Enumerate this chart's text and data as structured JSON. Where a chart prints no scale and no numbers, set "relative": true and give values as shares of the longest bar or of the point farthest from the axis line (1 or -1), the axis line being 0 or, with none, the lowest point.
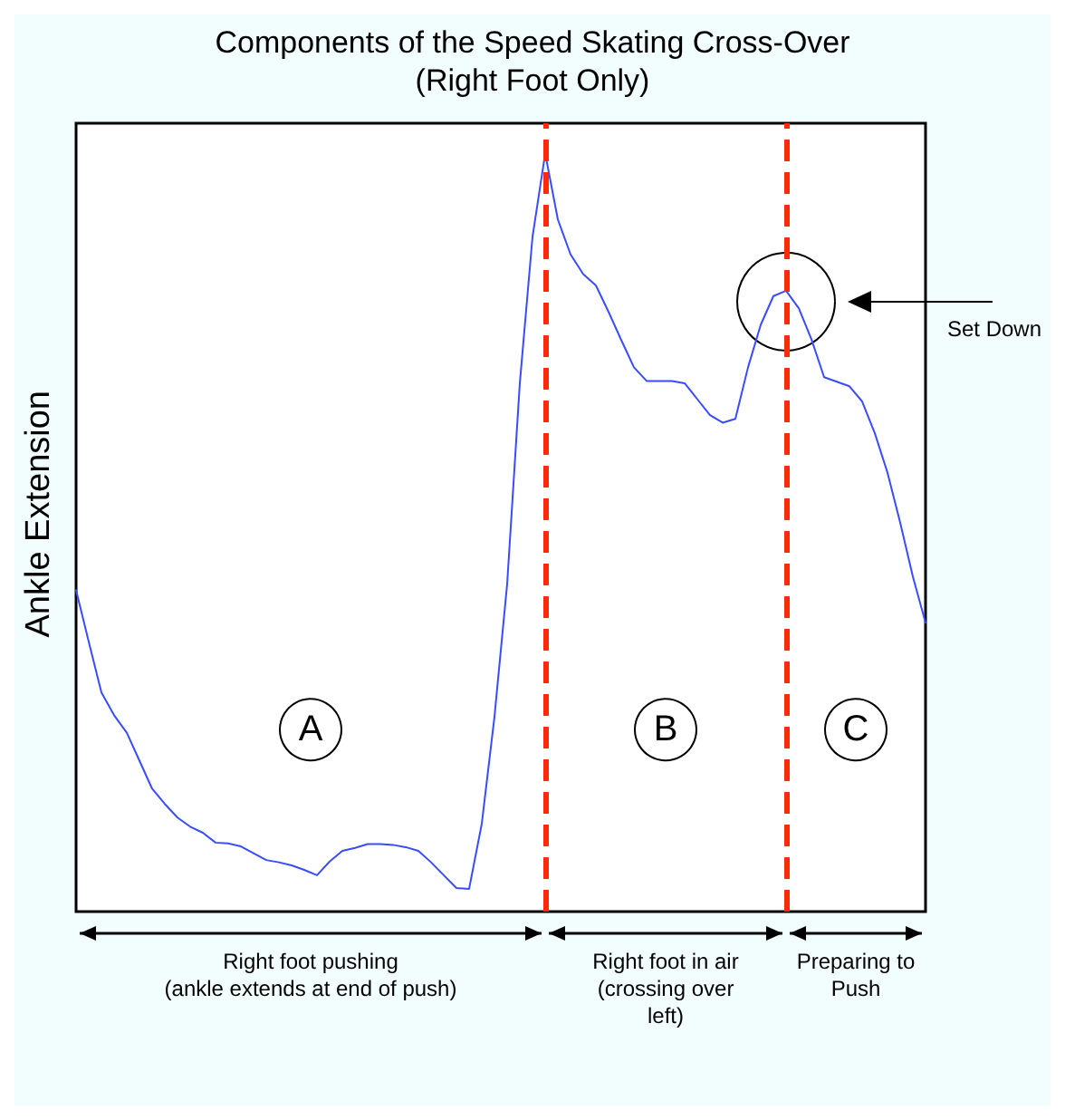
{
  "chart_data": {
    "type": "line",
    "title": "Components of the Speed Skating Cross-Over",
    "subtitle": "(Right Foot Only)",
    "ylabel": "Ankle Extension",
    "relative": true,
    "grid": false,
    "line_style": "solid",
    "categories": [
      null,
      null,
      null,
      null,
      null,
      null,
      null,
      null,
      null,
      null,
      null,
      null,
      null,
      null,
      null,
      null,
      null,
      null,
      null,
      null,
      null,
      null,
      null,
      null,
      null,
      null,
      null,
      null,
      null,
      null,
      null,
      null,
      null,
      null,
      null,
      null,
      null,
      null,
      null,
      null,
      null,
      null,
      null,
      null,
      null,
      null,
      null,
      null,
      null,
      null,
      null,
      null,
      null,
      null,
      null,
      null,
      null,
      null,
      null,
      null,
      null,
      null,
      null,
      null,
      null,
      null,
      null,
      null
    ],
    "series": [
      {
        "color": "#3a4cff",
        "values": [
          0.424,
          0.356,
          0.289,
          0.259,
          0.236,
          0.199,
          0.162,
          0.142,
          0.124,
          0.112,
          0.104,
          0.091,
          0.09,
          0.086,
          0.077,
          0.068,
          0.065,
          0.061,
          0.055,
          0.048,
          0.066,
          0.08,
          0.084,
          0.089,
          0.089,
          0.088,
          0.085,
          0.08,
          0.065,
          0.048,
          0.031,
          0.03,
          0.116,
          0.257,
          0.432,
          0.697,
          0.89,
          1,
          0.913,
          0.867,
          0.841,
          0.826,
          0.791,
          0.754,
          0.718,
          0.7,
          0.7,
          0.7,
          0.697,
          0.676,
          0.655,
          0.645,
          0.65,
          0.718,
          0.774,
          0.812,
          0.819,
          0.796,
          0.755,
          0.705,
          0.699,
          0.693,
          0.673,
          0.631,
          0.579,
          0.513,
          0.442,
          0.381
        ]
      }
    ],
    "annotations": [
      "A",
      "B",
      "C",
      "Right foot pushing\n(ankle extends at end of push)",
      "Right foot in air\n(crossing over\nleft)",
      "Preparing to\nPush",
      "Set Down"
    ]
  }
}
